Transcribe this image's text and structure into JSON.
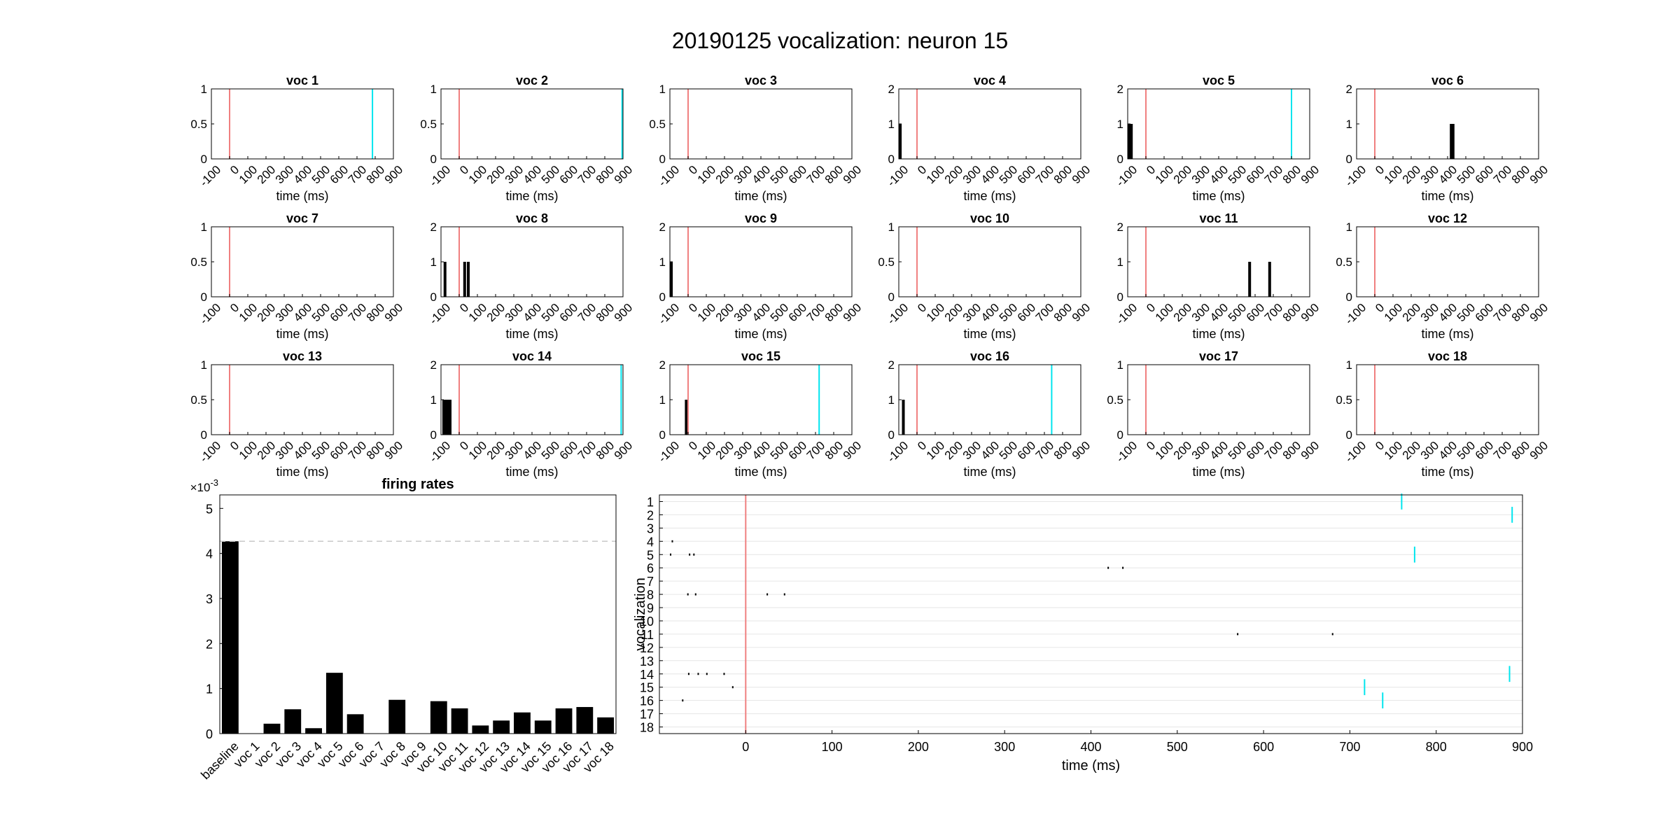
{
  "figure": {
    "title": "20190125 vocalization: neuron 15"
  },
  "colors": {
    "onset": "#f08080",
    "offset": "#00e5ee",
    "bar": "#000000",
    "axis": "#000000",
    "grid": "#e6e6e6",
    "baseline": "#c8c8c8"
  },
  "chart_data": [
    {
      "type": "bar",
      "group": "histograms",
      "xlabel": "time (ms)",
      "xlim": [
        -100,
        900
      ],
      "xticks": [
        -100,
        0,
        100,
        200,
        300,
        400,
        500,
        600,
        700,
        800,
        900
      ],
      "onset_ms": 0,
      "panels": [
        {
          "title": "voc 1",
          "ylim": [
            0,
            1
          ],
          "yticks": [
            "0",
            "0.5",
            "1"
          ],
          "offset_ms": 785,
          "bins": []
        },
        {
          "title": "voc 2",
          "ylim": [
            0,
            1
          ],
          "yticks": [
            "0",
            "0.5",
            "1"
          ],
          "offset_ms": 895,
          "bins": []
        },
        {
          "title": "voc 3",
          "ylim": [
            0,
            1
          ],
          "yticks": [
            "0",
            "0.5",
            "1"
          ],
          "offset_ms": null,
          "bins": []
        },
        {
          "title": "voc 4",
          "ylim": [
            0,
            2
          ],
          "yticks": [
            "0",
            "1",
            "2"
          ],
          "offset_ms": null,
          "bins": [
            {
              "x": -92,
              "v": 1
            }
          ]
        },
        {
          "title": "voc 5",
          "ylim": [
            0,
            2
          ],
          "yticks": [
            "0",
            "1",
            "2"
          ],
          "offset_ms": 800,
          "bins": [
            {
              "x": -92,
              "v": 1
            },
            {
              "x": -86,
              "v": 1
            },
            {
              "x": -80,
              "v": 1
            }
          ]
        },
        {
          "title": "voc 6",
          "ylim": [
            0,
            2
          ],
          "yticks": [
            "0",
            "1",
            "2"
          ],
          "offset_ms": null,
          "bins": [
            {
              "x": 420,
              "v": 1
            },
            {
              "x": 430,
              "v": 1
            }
          ]
        },
        {
          "title": "voc 7",
          "ylim": [
            0,
            1
          ],
          "yticks": [
            "0",
            "0.5",
            "1"
          ],
          "offset_ms": null,
          "bins": []
        },
        {
          "title": "voc 8",
          "ylim": [
            0,
            2
          ],
          "yticks": [
            "0",
            "1",
            "2"
          ],
          "offset_ms": null,
          "bins": [
            {
              "x": -78,
              "v": 1
            },
            {
              "x": 30,
              "v": 1
            },
            {
              "x": 50,
              "v": 1
            }
          ]
        },
        {
          "title": "voc 9",
          "ylim": [
            0,
            2
          ],
          "yticks": [
            "0",
            "1",
            "2"
          ],
          "offset_ms": null,
          "bins": [
            {
              "x": -92,
              "v": 1
            }
          ]
        },
        {
          "title": "voc 10",
          "ylim": [
            0,
            1
          ],
          "yticks": [
            "0",
            "0.5",
            "1"
          ],
          "offset_ms": null,
          "bins": []
        },
        {
          "title": "voc 11",
          "ylim": [
            0,
            2
          ],
          "yticks": [
            "0",
            "1",
            "2"
          ],
          "offset_ms": null,
          "bins": [
            {
              "x": 570,
              "v": 1
            },
            {
              "x": 680,
              "v": 1
            }
          ]
        },
        {
          "title": "voc 12",
          "ylim": [
            0,
            1
          ],
          "yticks": [
            "0",
            "0.5",
            "1"
          ],
          "offset_ms": null,
          "bins": []
        },
        {
          "title": "voc 13",
          "ylim": [
            0,
            1
          ],
          "yticks": [
            "0",
            "0.5",
            "1"
          ],
          "offset_ms": null,
          "bins": []
        },
        {
          "title": "voc 14",
          "ylim": [
            0,
            2
          ],
          "yticks": [
            "0",
            "1",
            "2"
          ],
          "offset_ms": 890,
          "bins": [
            {
              "x": -85,
              "v": 1
            },
            {
              "x": -75,
              "v": 1
            },
            {
              "x": -65,
              "v": 1
            },
            {
              "x": -55,
              "v": 1
            },
            {
              "x": -50,
              "v": 1
            }
          ]
        },
        {
          "title": "voc 15",
          "ylim": [
            0,
            2
          ],
          "yticks": [
            "0",
            "1",
            "2"
          ],
          "offset_ms": 720,
          "bins": [
            {
              "x": -10,
              "v": 1
            }
          ]
        },
        {
          "title": "voc 16",
          "ylim": [
            0,
            2
          ],
          "yticks": [
            "0",
            "1",
            "2"
          ],
          "offset_ms": 740,
          "bins": [
            {
              "x": -75,
              "v": 1
            }
          ]
        },
        {
          "title": "voc 17",
          "ylim": [
            0,
            1
          ],
          "yticks": [
            "0",
            "0.5",
            "1"
          ],
          "offset_ms": null,
          "bins": []
        },
        {
          "title": "voc 18",
          "ylim": [
            0,
            1
          ],
          "yticks": [
            "0",
            "0.5",
            "1"
          ],
          "offset_ms": null,
          "bins": []
        }
      ]
    },
    {
      "type": "bar",
      "title": "firing rates",
      "xlabel": "",
      "ylabel": "",
      "exponent_label": "×10",
      "exponent_power": "-3",
      "ylim": [
        0,
        5.3
      ],
      "yticks": [
        0,
        1,
        2,
        3,
        4,
        5
      ],
      "baseline_ref": 4.27,
      "categories": [
        "baseline",
        "voc 1",
        "voc 2",
        "voc 3",
        "voc 4",
        "voc 5",
        "voc 6",
        "voc 7",
        "voc 8",
        "voc 9",
        "voc 10",
        "voc 11",
        "voc 12",
        "voc 13",
        "voc 14",
        "voc 15",
        "voc 16",
        "voc 17",
        "voc 18"
      ],
      "values": [
        4.27,
        0,
        0.22,
        0.54,
        0.12,
        1.35,
        0.43,
        0,
        0.75,
        0,
        0.72,
        0.56,
        0.18,
        0.29,
        0.47,
        0.29,
        0.56,
        0.59,
        0.36
      ]
    },
    {
      "type": "scatter",
      "subtype": "raster",
      "xlabel": "time (ms)",
      "ylabel": "vocalization",
      "xlim": [
        -100,
        900
      ],
      "xticks": [
        0,
        100,
        200,
        300,
        400,
        500,
        600,
        700,
        800,
        900
      ],
      "rows": [
        "1",
        "2",
        "3",
        "4",
        "5",
        "6",
        "7",
        "8",
        "9",
        "10",
        "11",
        "12",
        "13",
        "14",
        "15",
        "16",
        "17",
        "18"
      ],
      "onset_ms": 0,
      "offsets": [
        {
          "row": 1,
          "t": 760
        },
        {
          "row": 2,
          "t": 888
        },
        {
          "row": 5,
          "t": 775
        },
        {
          "row": 14,
          "t": 885
        },
        {
          "row": 15,
          "t": 717
        },
        {
          "row": 16,
          "t": 738
        }
      ],
      "spikes": [
        {
          "row": 4,
          "t": -85
        },
        {
          "row": 5,
          "t": -87
        },
        {
          "row": 5,
          "t": -65
        },
        {
          "row": 5,
          "t": -60
        },
        {
          "row": 6,
          "t": 420
        },
        {
          "row": 6,
          "t": 437
        },
        {
          "row": 8,
          "t": -67
        },
        {
          "row": 8,
          "t": -58
        },
        {
          "row": 8,
          "t": 25
        },
        {
          "row": 8,
          "t": 45
        },
        {
          "row": 11,
          "t": 570
        },
        {
          "row": 11,
          "t": 680
        },
        {
          "row": 14,
          "t": -66
        },
        {
          "row": 14,
          "t": -55
        },
        {
          "row": 14,
          "t": -45
        },
        {
          "row": 14,
          "t": -25
        },
        {
          "row": 15,
          "t": -15
        },
        {
          "row": 16,
          "t": -73
        }
      ]
    }
  ]
}
